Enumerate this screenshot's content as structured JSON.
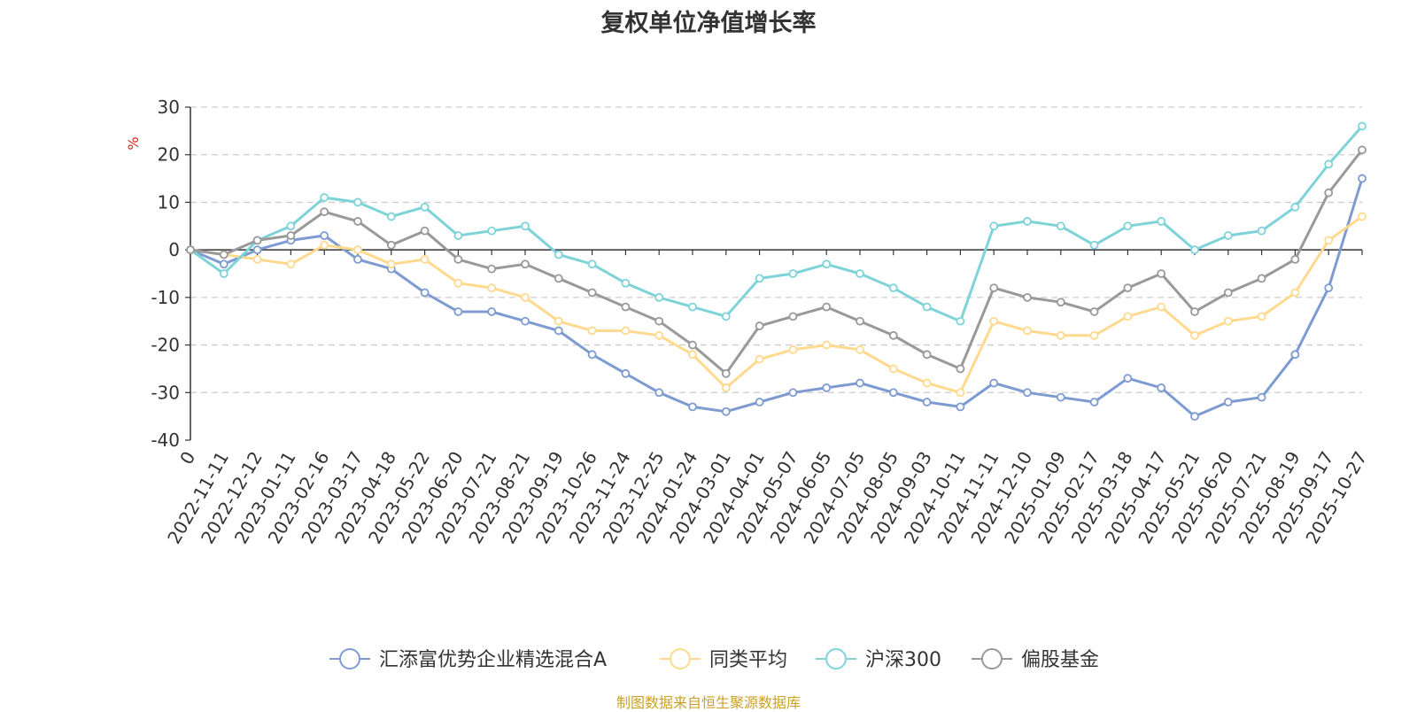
{
  "chart_data": {
    "type": "line",
    "title": "复权单位净值增长率",
    "ylabel": "%",
    "ylim": [
      -40,
      30
    ],
    "yticks": [
      30,
      20,
      10,
      0,
      -10,
      -20,
      -30,
      -40
    ],
    "grid": true,
    "legend_position": "bottom",
    "source": "制图数据来自恒生聚源数据库",
    "x": [
      "0",
      "2022-11-11",
      "2022-12-12",
      "2023-01-11",
      "2023-02-16",
      "2023-03-17",
      "2023-04-18",
      "2023-05-22",
      "2023-06-20",
      "2023-07-21",
      "2023-08-21",
      "2023-09-19",
      "2023-10-26",
      "2023-11-24",
      "2023-12-25",
      "2024-01-24",
      "2024-03-01",
      "2024-04-01",
      "2024-05-07",
      "2024-06-05",
      "2024-07-05",
      "2024-08-05",
      "2024-09-03",
      "2024-10-11",
      "2024-11-11",
      "2024-12-10",
      "2025-01-09",
      "2025-02-17",
      "2025-03-18",
      "2025-04-17",
      "2025-05-21",
      "2025-06-20",
      "2025-07-21",
      "2025-08-19",
      "2025-09-17",
      "2025-10-27"
    ],
    "series": [
      {
        "name": "汇添富优势企业精选混合A",
        "color": "#7e9bd1",
        "values": [
          0,
          -3,
          0,
          2,
          3,
          -2,
          -4,
          -9,
          -13,
          -13,
          -15,
          -17,
          -22,
          -26,
          -30,
          -33,
          -34,
          -32,
          -30,
          -29,
          -28,
          -30,
          -32,
          -33,
          -28,
          -30,
          -31,
          -32,
          -27,
          -29,
          -35,
          -32,
          -31,
          -22,
          -8,
          15
        ]
      },
      {
        "name": "同类平均",
        "color": "#ffd98e",
        "values": [
          0,
          -1,
          -2,
          -3,
          1,
          0,
          -3,
          -2,
          -7,
          -8,
          -10,
          -15,
          -17,
          -17,
          -18,
          -22,
          -29,
          -23,
          -21,
          -20,
          -21,
          -25,
          -28,
          -30,
          -15,
          -17,
          -18,
          -18,
          -14,
          -12,
          -18,
          -15,
          -14,
          -9,
          2,
          7
        ]
      },
      {
        "name": "沪深300",
        "color": "#7ed3d8",
        "values": [
          0,
          -5,
          2,
          5,
          11,
          10,
          7,
          9,
          3,
          4,
          5,
          -1,
          -3,
          -7,
          -10,
          -12,
          -14,
          -6,
          -5,
          -3,
          -5,
          -8,
          -12,
          -15,
          5,
          6,
          5,
          1,
          5,
          6,
          0,
          3,
          4,
          9,
          18,
          26
        ]
      },
      {
        "name": "偏股基金",
        "color": "#999999",
        "values": [
          0,
          -1,
          2,
          3,
          8,
          6,
          1,
          4,
          -2,
          -4,
          -3,
          -6,
          -9,
          -12,
          -15,
          -20,
          -26,
          -16,
          -14,
          -12,
          -15,
          -18,
          -22,
          -25,
          -8,
          -10,
          -11,
          -13,
          -8,
          -5,
          -13,
          -9,
          -6,
          -2,
          12,
          21
        ]
      }
    ]
  }
}
